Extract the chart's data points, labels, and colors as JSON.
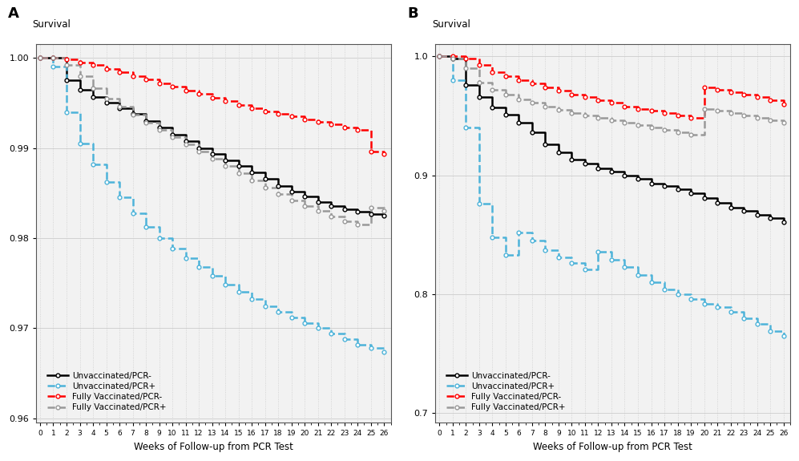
{
  "panel_A": {
    "label": "A",
    "ylim": [
      0.9595,
      1.0015
    ],
    "yticks": [
      0.96,
      0.97,
      0.98,
      0.99,
      1.0
    ],
    "ytick_labels": [
      "0.96",
      "0.97",
      "0.98",
      "0.99",
      "1.00"
    ],
    "unvacc_neg": [
      1.0,
      1.0,
      0.9975,
      0.9965,
      0.9957,
      0.995,
      0.9944,
      0.9938,
      0.993,
      0.9923,
      0.9915,
      0.9908,
      0.99,
      0.9893,
      0.9886,
      0.988,
      0.9873,
      0.9866,
      0.9858,
      0.9852,
      0.9846,
      0.984,
      0.9836,
      0.9832,
      0.9829,
      0.9827,
      0.9825
    ],
    "unvacc_pos": [
      1.0,
      0.999,
      0.994,
      0.9905,
      0.9882,
      0.9862,
      0.9845,
      0.9828,
      0.9812,
      0.98,
      0.9788,
      0.9778,
      0.9768,
      0.9758,
      0.9748,
      0.974,
      0.9732,
      0.9724,
      0.9718,
      0.9712,
      0.9706,
      0.97,
      0.9694,
      0.9688,
      0.9682,
      0.9678,
      0.9674
    ],
    "vacc_neg": [
      1.0,
      1.0,
      0.9998,
      0.9995,
      0.9992,
      0.9988,
      0.9984,
      0.998,
      0.9976,
      0.9972,
      0.9968,
      0.9964,
      0.996,
      0.9956,
      0.9952,
      0.9948,
      0.9944,
      0.9941,
      0.9938,
      0.9935,
      0.9932,
      0.9929,
      0.9926,
      0.9923,
      0.992,
      0.9896,
      0.9893
    ],
    "vacc_pos": [
      1.0,
      1.0,
      0.9992,
      0.998,
      0.9966,
      0.9955,
      0.9946,
      0.9937,
      0.9928,
      0.992,
      0.9912,
      0.9904,
      0.9896,
      0.9888,
      0.988,
      0.9872,
      0.9864,
      0.9856,
      0.9849,
      0.9842,
      0.9836,
      0.983,
      0.9824,
      0.9819,
      0.9815,
      0.9834,
      0.983
    ]
  },
  "panel_B": {
    "label": "B",
    "ylim": [
      0.692,
      1.01
    ],
    "yticks": [
      0.7,
      0.8,
      0.9,
      1.0
    ],
    "ytick_labels": [
      "0.7",
      "0.8",
      "0.9",
      "1.0"
    ],
    "unvacc_neg": [
      1.0,
      0.998,
      0.976,
      0.966,
      0.957,
      0.951,
      0.944,
      0.936,
      0.926,
      0.919,
      0.913,
      0.91,
      0.906,
      0.903,
      0.9,
      0.897,
      0.893,
      0.891,
      0.888,
      0.885,
      0.881,
      0.877,
      0.873,
      0.87,
      0.867,
      0.864,
      0.861
    ],
    "unvacc_pos": [
      1.0,
      0.98,
      0.94,
      0.876,
      0.848,
      0.833,
      0.852,
      0.845,
      0.837,
      0.831,
      0.826,
      0.821,
      0.836,
      0.829,
      0.823,
      0.816,
      0.81,
      0.804,
      0.8,
      0.796,
      0.792,
      0.789,
      0.785,
      0.78,
      0.775,
      0.769,
      0.765
    ],
    "vacc_neg": [
      1.0,
      1.0,
      0.998,
      0.993,
      0.987,
      0.983,
      0.98,
      0.977,
      0.974,
      0.971,
      0.968,
      0.966,
      0.963,
      0.961,
      0.958,
      0.956,
      0.954,
      0.952,
      0.95,
      0.948,
      0.974,
      0.972,
      0.97,
      0.968,
      0.966,
      0.963,
      0.96
    ],
    "vacc_pos": [
      1.0,
      0.998,
      0.99,
      0.978,
      0.972,
      0.968,
      0.964,
      0.961,
      0.958,
      0.955,
      0.952,
      0.95,
      0.948,
      0.946,
      0.944,
      0.942,
      0.94,
      0.938,
      0.936,
      0.934,
      0.956,
      0.954,
      0.952,
      0.95,
      0.948,
      0.946,
      0.944
    ]
  },
  "weeks": [
    0,
    1,
    2,
    3,
    4,
    5,
    6,
    7,
    8,
    9,
    10,
    11,
    12,
    13,
    14,
    15,
    16,
    17,
    18,
    19,
    20,
    21,
    22,
    23,
    24,
    25,
    26
  ],
  "xlabel": "Weeks of Follow-up from PCR Test",
  "survival_label": "Survival",
  "bg_color": "#f2f2f2",
  "curve_colors": [
    "black",
    "#4db3d9",
    "red",
    "#999999"
  ],
  "curve_linestyles": [
    "-",
    "--",
    "--",
    "--"
  ],
  "curve_labels": [
    "Unvaccinated/PCR-",
    "Unvaccinated/PCR+",
    "Fully Vaccinated/PCR-",
    "Fully Vaccinated/PCR+"
  ]
}
